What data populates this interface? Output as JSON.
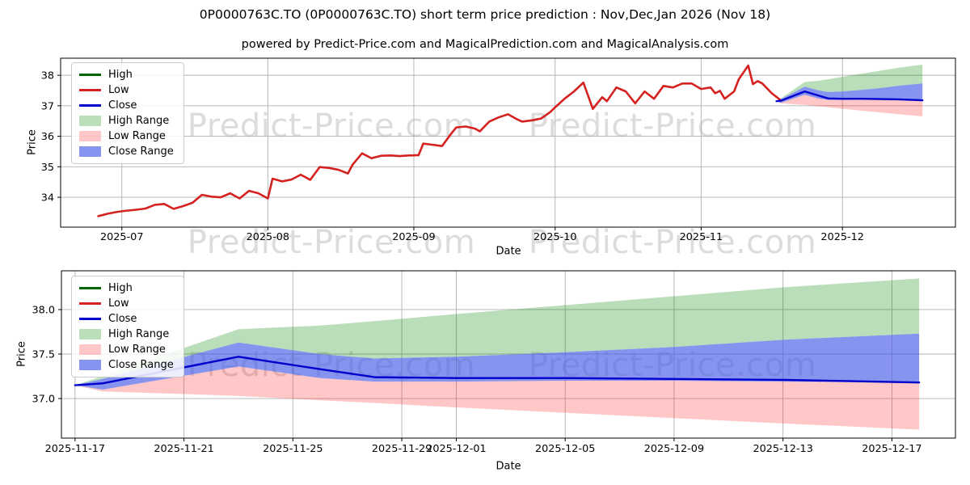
{
  "page": {
    "title": "0P0000763C.TO (0P0000763C.TO) short term price prediction : Nov,Dec,Jan 2026 (Nov 18)",
    "subtitle": "powered by Predict-Price.com and MagicalPrediction.com and MagicalAnalysis.com"
  },
  "watermark": {
    "text": "Predict-Price.com",
    "color": "#dcdcdc"
  },
  "colors": {
    "high": "#006400",
    "low": "#d42220",
    "close": "#0000cd",
    "high_range": "rgba(0,128,0,0.27)",
    "low_range": "rgba(255,0,0,0.22)",
    "close_range": "rgba(70,90,230,0.65)",
    "grid": "#b0b0b0",
    "spine": "#000000"
  },
  "legend": {
    "items": [
      {
        "key": "high",
        "label": "High",
        "swatch": "line"
      },
      {
        "key": "low",
        "label": "Low",
        "swatch": "line"
      },
      {
        "key": "close",
        "label": "Close",
        "swatch": "line"
      },
      {
        "key": "high_range",
        "label": "High Range",
        "swatch": "patch"
      },
      {
        "key": "low_range",
        "label": "Low Range",
        "swatch": "patch"
      },
      {
        "key": "close_range",
        "label": "Close Range",
        "swatch": "patch"
      }
    ]
  },
  "chart_data": [
    {
      "name": "price-history-with-forecast",
      "type": "line",
      "xlabel": "Date",
      "ylabel": "Price",
      "grid": true,
      "legend_position": "upper left",
      "xlim": [
        "2025-06-18",
        "2025-12-25"
      ],
      "ylim": [
        33.02,
        38.56
      ],
      "yticks": [
        {
          "v": 34,
          "label": "34"
        },
        {
          "v": 35,
          "label": "35"
        },
        {
          "v": 36,
          "label": "36"
        },
        {
          "v": 37,
          "label": "37"
        },
        {
          "v": 38,
          "label": "38"
        }
      ],
      "xticks": [
        {
          "d": "2025-07-01",
          "label": "2025-07"
        },
        {
          "d": "2025-08-01",
          "label": "2025-08"
        },
        {
          "d": "2025-09-01",
          "label": "2025-09"
        },
        {
          "d": "2025-10-01",
          "label": "2025-10"
        },
        {
          "d": "2025-11-01",
          "label": "2025-11"
        },
        {
          "d": "2025-12-01",
          "label": "2025-12"
        }
      ],
      "history": {
        "name": "Low",
        "dates": [
          "2025-06-26",
          "2025-06-28",
          "2025-06-30",
          "2025-07-02",
          "2025-07-04",
          "2025-07-06",
          "2025-07-08",
          "2025-07-10",
          "2025-07-12",
          "2025-07-14",
          "2025-07-16",
          "2025-07-18",
          "2025-07-20",
          "2025-07-22",
          "2025-07-24",
          "2025-07-26",
          "2025-07-28",
          "2025-07-30",
          "2025-08-01",
          "2025-08-02",
          "2025-08-04",
          "2025-08-06",
          "2025-08-08",
          "2025-08-10",
          "2025-08-12",
          "2025-08-14",
          "2025-08-16",
          "2025-08-18",
          "2025-08-19",
          "2025-08-21",
          "2025-08-23",
          "2025-08-25",
          "2025-08-27",
          "2025-08-29",
          "2025-08-31",
          "2025-09-02",
          "2025-09-03",
          "2025-09-05",
          "2025-09-07",
          "2025-09-09",
          "2025-09-10",
          "2025-09-12",
          "2025-09-14",
          "2025-09-15",
          "2025-09-17",
          "2025-09-19",
          "2025-09-21",
          "2025-09-23",
          "2025-09-24",
          "2025-09-26",
          "2025-09-28",
          "2025-09-30",
          "2025-10-01",
          "2025-10-03",
          "2025-10-05",
          "2025-10-07",
          "2025-10-09",
          "2025-10-11",
          "2025-10-12",
          "2025-10-14",
          "2025-10-16",
          "2025-10-18",
          "2025-10-20",
          "2025-10-22",
          "2025-10-24",
          "2025-10-26",
          "2025-10-28",
          "2025-10-30",
          "2025-11-01",
          "2025-11-03",
          "2025-11-04",
          "2025-11-05",
          "2025-11-06",
          "2025-11-08",
          "2025-11-09",
          "2025-11-11",
          "2025-11-12",
          "2025-11-13",
          "2025-11-14",
          "2025-11-16",
          "2025-11-18"
        ],
        "values": [
          33.38,
          33.46,
          33.52,
          33.56,
          33.59,
          33.63,
          33.75,
          33.78,
          33.62,
          33.71,
          33.82,
          34.08,
          34.02,
          34.0,
          34.13,
          33.96,
          34.21,
          34.13,
          33.96,
          34.61,
          34.52,
          34.58,
          34.74,
          34.57,
          34.99,
          34.96,
          34.9,
          34.78,
          35.07,
          35.44,
          35.28,
          35.36,
          35.37,
          35.35,
          35.37,
          35.38,
          35.76,
          35.72,
          35.68,
          36.1,
          36.29,
          36.32,
          36.25,
          36.16,
          36.48,
          36.62,
          36.72,
          36.55,
          36.48,
          36.52,
          36.58,
          36.8,
          36.95,
          37.23,
          37.47,
          37.76,
          36.9,
          37.28,
          37.15,
          37.6,
          37.47,
          37.08,
          37.47,
          37.23,
          37.65,
          37.6,
          37.73,
          37.73,
          37.55,
          37.6,
          37.41,
          37.49,
          37.23,
          37.47,
          37.87,
          38.32,
          37.71,
          37.81,
          37.73,
          37.41,
          37.17
        ]
      },
      "forecast": {
        "name": "Close",
        "dates": [
          "2025-11-17",
          "2025-11-18",
          "2025-11-23",
          "2025-11-26",
          "2025-11-28",
          "2025-12-01",
          "2025-12-05",
          "2025-12-09",
          "2025-12-13",
          "2025-12-18"
        ],
        "close": [
          37.15,
          37.17,
          37.47,
          37.33,
          37.24,
          37.23,
          37.23,
          37.22,
          37.21,
          37.18
        ],
        "close_range_top": [
          37.15,
          37.22,
          37.63,
          37.5,
          37.45,
          37.47,
          37.52,
          37.58,
          37.66,
          37.73
        ],
        "close_range_bottom": [
          37.15,
          37.1,
          37.36,
          37.23,
          37.19,
          37.19,
          37.2,
          37.2,
          37.19,
          37.18
        ],
        "high_range_top": [
          37.15,
          37.25,
          37.78,
          37.82,
          37.87,
          37.95,
          38.05,
          38.15,
          38.25,
          38.35
        ],
        "low_range_bottom": [
          37.15,
          37.08,
          37.03,
          36.98,
          36.95,
          36.9,
          36.84,
          36.78,
          36.72,
          36.65
        ]
      },
      "bands": [
        {
          "label": "High Range",
          "upper": "high_range_top",
          "lower": "close_range_top",
          "color": "high_range"
        },
        {
          "label": "Low Range",
          "upper": "close_range_bottom",
          "lower": "low_range_bottom",
          "color": "low_range"
        },
        {
          "label": "Close Range",
          "upper": "close_range_top",
          "lower": "close_range_bottom",
          "color": "close_range"
        }
      ]
    },
    {
      "name": "forecast-zoom",
      "type": "line",
      "xlabel": "Date",
      "ylabel": "Price",
      "grid": true,
      "legend_position": "upper left",
      "xlim": [
        "2025-11-16T12:00:00Z",
        "2025-12-19T08:00:00Z"
      ],
      "ylim": [
        36.555,
        38.436
      ],
      "yticks": [
        {
          "v": 37.0,
          "label": "37.0"
        },
        {
          "v": 37.5,
          "label": "37.5"
        },
        {
          "v": 38.0,
          "label": "38.0"
        }
      ],
      "xticks": [
        {
          "d": "2025-11-17",
          "label": "2025-11-17"
        },
        {
          "d": "2025-11-21",
          "label": "2025-11-21"
        },
        {
          "d": "2025-11-25",
          "label": "2025-11-25"
        },
        {
          "d": "2025-11-29",
          "label": "2025-11-29"
        },
        {
          "d": "2025-12-01",
          "label": "2025-12-01"
        },
        {
          "d": "2025-12-05",
          "label": "2025-12-05"
        },
        {
          "d": "2025-12-09",
          "label": "2025-12-09"
        },
        {
          "d": "2025-12-13",
          "label": "2025-12-13"
        },
        {
          "d": "2025-12-17",
          "label": "2025-12-17"
        }
      ],
      "forecast": {
        "name": "Close",
        "dates": [
          "2025-11-17",
          "2025-11-18",
          "2025-11-23",
          "2025-11-26",
          "2025-11-28",
          "2025-12-01",
          "2025-12-05",
          "2025-12-09",
          "2025-12-13",
          "2025-12-18"
        ],
        "close": [
          37.15,
          37.17,
          37.47,
          37.33,
          37.24,
          37.23,
          37.23,
          37.22,
          37.21,
          37.18
        ],
        "close_range_top": [
          37.15,
          37.22,
          37.63,
          37.5,
          37.45,
          37.47,
          37.52,
          37.58,
          37.66,
          37.73
        ],
        "close_range_bottom": [
          37.15,
          37.1,
          37.36,
          37.23,
          37.19,
          37.19,
          37.2,
          37.2,
          37.19,
          37.18
        ],
        "high_range_top": [
          37.15,
          37.25,
          37.78,
          37.82,
          37.87,
          37.95,
          38.05,
          38.15,
          38.25,
          38.35
        ],
        "low_range_bottom": [
          37.15,
          37.08,
          37.03,
          36.98,
          36.95,
          36.9,
          36.84,
          36.78,
          36.72,
          36.65
        ]
      },
      "bands": [
        {
          "label": "High Range",
          "upper": "high_range_top",
          "lower": "close_range_top",
          "color": "high_range"
        },
        {
          "label": "Low Range",
          "upper": "close_range_bottom",
          "lower": "low_range_bottom",
          "color": "low_range"
        },
        {
          "label": "Close Range",
          "upper": "close_range_top",
          "lower": "close_range_bottom",
          "color": "close_range"
        }
      ]
    }
  ]
}
